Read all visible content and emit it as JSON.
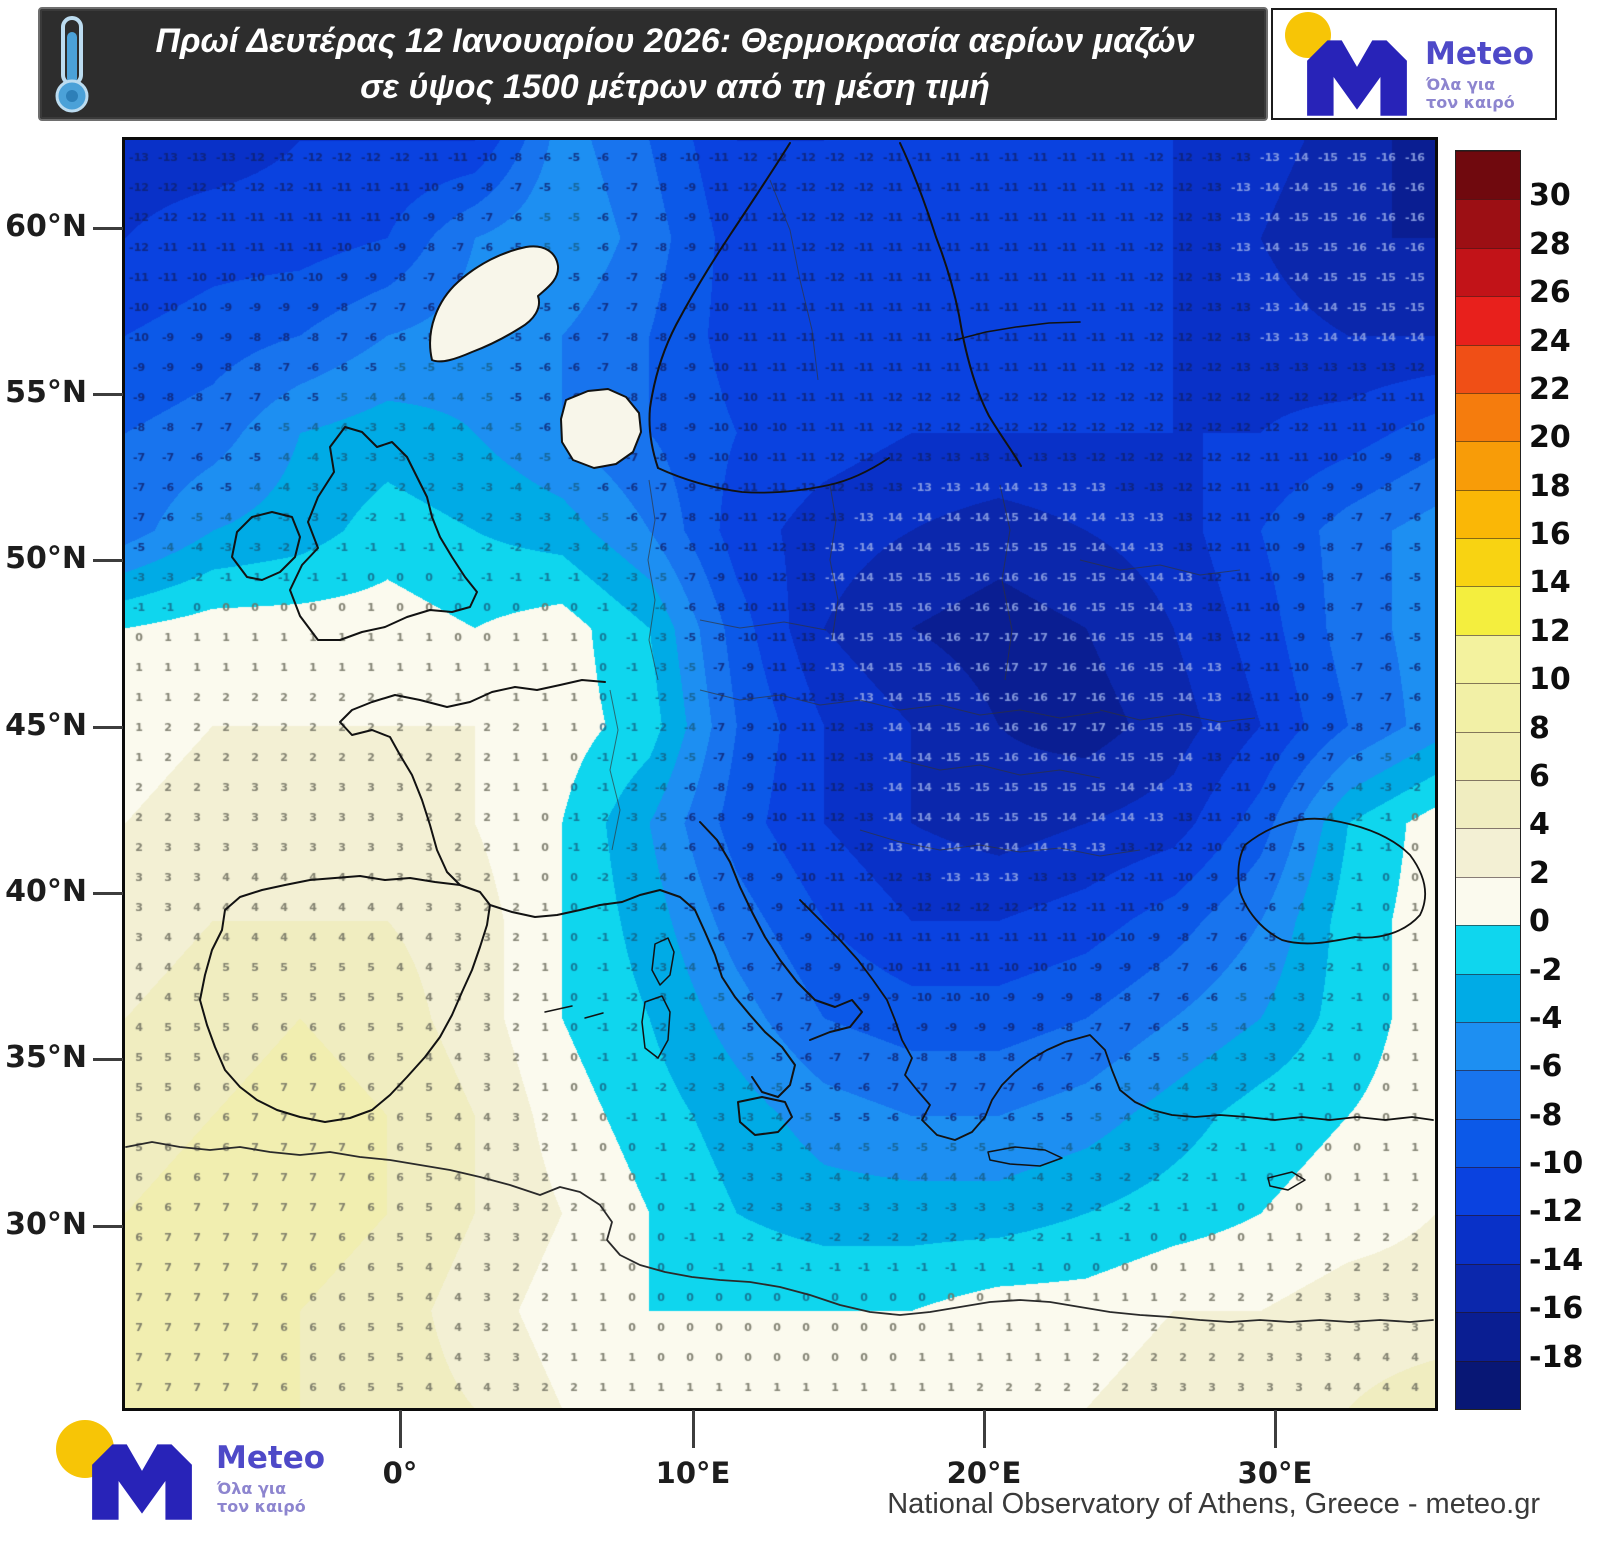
{
  "header": {
    "title_line1": "Πρωί Δευτέρας 12 Ιανουαρίου 2026: Θερμοκρασία αερίων μαζών",
    "title_line2": "σε ύψος 1500 μέτρων από τη μέση τιμή"
  },
  "logo": {
    "name": "Meteo",
    "tagline_line1": "Όλα για",
    "tagline_line2": "τον καιρό",
    "dot_color": "#f7c506",
    "m_color": "#2823b8",
    "name_color": "#4e49c8",
    "tagline_color": "#8d85cf"
  },
  "attribution": "National Observatory of Athens, Greece - meteo.gr",
  "axes": {
    "lat_labels": [
      "60°N",
      "55°N",
      "50°N",
      "45°N",
      "40°N",
      "35°N",
      "30°N"
    ],
    "lon_labels": [
      "0°",
      "10°E",
      "20°E",
      "30°E"
    ]
  },
  "colorbar": {
    "tick_labels": [
      "30",
      "28",
      "26",
      "24",
      "22",
      "20",
      "18",
      "16",
      "14",
      "12",
      "10",
      "8",
      "6",
      "4",
      "2",
      "0",
      "-2",
      "-4",
      "-6",
      "-8",
      "-10",
      "-12",
      "-14",
      "-16",
      "-18"
    ],
    "cell_colors": [
      "#70090e",
      "#9c0f14",
      "#c21318",
      "#e8201c",
      "#f04f16",
      "#f57c0d",
      "#f89c08",
      "#fab706",
      "#f8d312",
      "#f4ee3e",
      "#f3f29e",
      "#f2f0a6",
      "#f1eeb0",
      "#f0edc0",
      "#f3f0d4",
      "#fbfaee",
      "#0fd6ee",
      "#00abe6",
      "#1d8ff2",
      "#1874ee",
      "#0c59e8",
      "#0a42e0",
      "#0931c8",
      "#0b27ac",
      "#0a1e92",
      "#081775"
    ]
  },
  "chart_data": {
    "type": "heatmap",
    "title": "Πρωί Δευτέρας 12 Ιανουαρίου 2026: Θερμοκρασία αερίων μαζών σε ύψος 1500 μέτρων από τη μέση τιμή",
    "units": "°C",
    "legend_position": "right",
    "legend_max": 30,
    "legend_min": -18,
    "legend_step": 2,
    "lon_range": [
      -9.5,
      35.5
    ],
    "lat_range": [
      28.5,
      63.0
    ],
    "lat_tick_values": [
      60,
      55,
      50,
      45,
      40,
      35,
      30
    ],
    "lon_tick_values": [
      0,
      10,
      20,
      30
    ],
    "grid_cols": 16,
    "grid_rows": 14,
    "values_north_to_south": [
      [
        -13,
        -13,
        -12,
        -12,
        -12,
        -5,
        -8,
        -12,
        -12,
        -11,
        -11,
        -11,
        -12,
        -13,
        -15,
        -17
      ],
      [
        -12,
        -11,
        -11,
        -10,
        -6,
        -4,
        -7,
        -11,
        -12,
        -11,
        -11,
        -11,
        -12,
        -14,
        -16,
        -16
      ],
      [
        -10,
        -9,
        -8,
        -6,
        -5,
        -6,
        -8,
        -11,
        -11,
        -11,
        -11,
        -11,
        -12,
        -13,
        -14,
        -14
      ],
      [
        -8,
        -7,
        -4,
        -3,
        -4,
        -6,
        -8,
        -10,
        -11,
        -12,
        -12,
        -12,
        -12,
        -12,
        -11,
        -9
      ],
      [
        -7,
        -4,
        -3,
        -1,
        -2,
        -3,
        -6,
        -11,
        -13,
        -14,
        -15,
        -14,
        -13,
        -10,
        -7,
        -5
      ],
      [
        0,
        1,
        1,
        1,
        0,
        1,
        -2,
        -9,
        -14,
        -16,
        -17,
        -16,
        -14,
        -11,
        -7,
        -5
      ],
      [
        1,
        2,
        2,
        2,
        2,
        1,
        -1,
        -8,
        -12,
        -14,
        -16,
        -17,
        -15,
        -12,
        -8,
        -5
      ],
      [
        2,
        3,
        3,
        3,
        2,
        0,
        -4,
        -9,
        -12,
        -14,
        -15,
        -14,
        -13,
        -9,
        -2,
        1
      ],
      [
        3,
        4,
        4,
        4,
        3,
        0,
        -3,
        -7,
        -10,
        -12,
        -12,
        -11,
        -9,
        -6,
        -1,
        1
      ],
      [
        4,
        5,
        6,
        5,
        3,
        0,
        -2,
        -5,
        -8,
        -9,
        -9,
        -8,
        -6,
        -4,
        -1,
        1
      ],
      [
        5,
        6,
        7,
        6,
        4,
        1,
        -1,
        -3,
        -5,
        -6,
        -6,
        -5,
        -3,
        -1,
        0,
        1
      ],
      [
        6,
        7,
        7,
        6,
        4,
        2,
        0,
        -2,
        -3,
        -3,
        -3,
        -2,
        -1,
        0,
        1,
        2
      ],
      [
        7,
        7,
        6,
        5,
        3,
        1,
        0,
        0,
        0,
        0,
        1,
        1,
        2,
        2,
        3,
        3
      ],
      [
        7,
        7,
        6,
        5,
        4,
        2,
        1,
        1,
        1,
        1,
        2,
        2,
        3,
        3,
        4,
        5
      ]
    ]
  }
}
